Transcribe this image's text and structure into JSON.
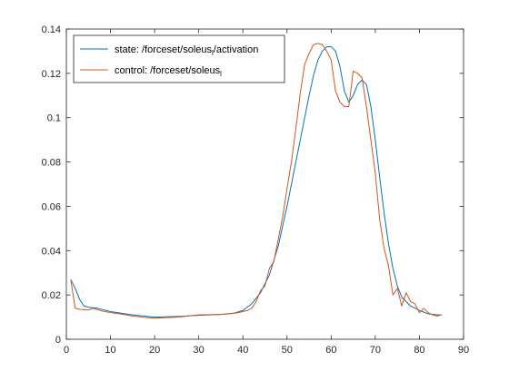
{
  "chart_data": {
    "type": "line",
    "title": "",
    "xlabel": "",
    "ylabel": "",
    "xlim": [
      0,
      90
    ],
    "ylim": [
      0,
      0.14
    ],
    "x_ticks": [
      0,
      10,
      20,
      30,
      40,
      50,
      60,
      70,
      80,
      90
    ],
    "x_tick_labels": [
      "0",
      "10",
      "20",
      "30",
      "40",
      "50",
      "60",
      "70",
      "80",
      "90"
    ],
    "y_ticks": [
      0,
      0.02,
      0.04,
      0.06,
      0.08,
      0.1,
      0.12,
      0.14
    ],
    "y_tick_labels": [
      "0",
      "0.02",
      "0.04",
      "0.06",
      "0.08",
      "0.1",
      "0.12",
      "0.14"
    ],
    "grid": false,
    "legend_position": "top-left",
    "series": [
      {
        "name": "state: /forceset/soleus_l/activation",
        "legend_parts": [
          "state: /forceset/soleus",
          "l",
          "/activation"
        ],
        "color": "#0072BD",
        "x": [
          1,
          2,
          3,
          4,
          5,
          7,
          10,
          15,
          20,
          25,
          30,
          35,
          38,
          40,
          42,
          44,
          46,
          48,
          50,
          52,
          54,
          55,
          56,
          57,
          58,
          59,
          60,
          61,
          62,
          63,
          64,
          65,
          66,
          67,
          68,
          69,
          70,
          71,
          72,
          73,
          74,
          75,
          76,
          78,
          80,
          82,
          84,
          85
        ],
        "y": [
          0.027,
          0.023,
          0.018,
          0.015,
          0.0145,
          0.014,
          0.0125,
          0.011,
          0.01,
          0.0103,
          0.0108,
          0.0112,
          0.0118,
          0.013,
          0.016,
          0.021,
          0.029,
          0.042,
          0.06,
          0.08,
          0.1,
          0.11,
          0.119,
          0.126,
          0.13,
          0.132,
          0.132,
          0.13,
          0.123,
          0.112,
          0.107,
          0.11,
          0.115,
          0.117,
          0.115,
          0.105,
          0.09,
          0.073,
          0.057,
          0.043,
          0.032,
          0.024,
          0.019,
          0.015,
          0.013,
          0.0115,
          0.011,
          0.011
        ]
      },
      {
        "name": "control: /forceset/soleus_l",
        "legend_parts": [
          "control: /forceset/soleus",
          "l",
          ""
        ],
        "color": "#D95319",
        "x": [
          1,
          2,
          3,
          5,
          6,
          8,
          10,
          12,
          15,
          18,
          20,
          25,
          30,
          35,
          37,
          39,
          40,
          41,
          42,
          43,
          44,
          45,
          46,
          47,
          48,
          49,
          50,
          51,
          52,
          53,
          54,
          55,
          56,
          57,
          58,
          59,
          60,
          61,
          62,
          63,
          64,
          65,
          66,
          67,
          68,
          69,
          70,
          71,
          72,
          73,
          74,
          75,
          76,
          77,
          78,
          79,
          80,
          81,
          82,
          83,
          84,
          85
        ],
        "y": [
          0.027,
          0.014,
          0.0135,
          0.0132,
          0.014,
          0.0128,
          0.012,
          0.0115,
          0.0105,
          0.0098,
          0.0095,
          0.01,
          0.011,
          0.0112,
          0.0115,
          0.012,
          0.0125,
          0.013,
          0.014,
          0.017,
          0.022,
          0.024,
          0.032,
          0.035,
          0.045,
          0.055,
          0.068,
          0.08,
          0.095,
          0.111,
          0.124,
          0.129,
          0.133,
          0.1335,
          0.133,
          0.13,
          0.126,
          0.112,
          0.107,
          0.105,
          0.105,
          0.121,
          0.12,
          0.118,
          0.105,
          0.09,
          0.075,
          0.054,
          0.041,
          0.033,
          0.02,
          0.023,
          0.015,
          0.021,
          0.017,
          0.016,
          0.012,
          0.014,
          0.012,
          0.011,
          0.0105,
          0.011
        ]
      }
    ]
  }
}
